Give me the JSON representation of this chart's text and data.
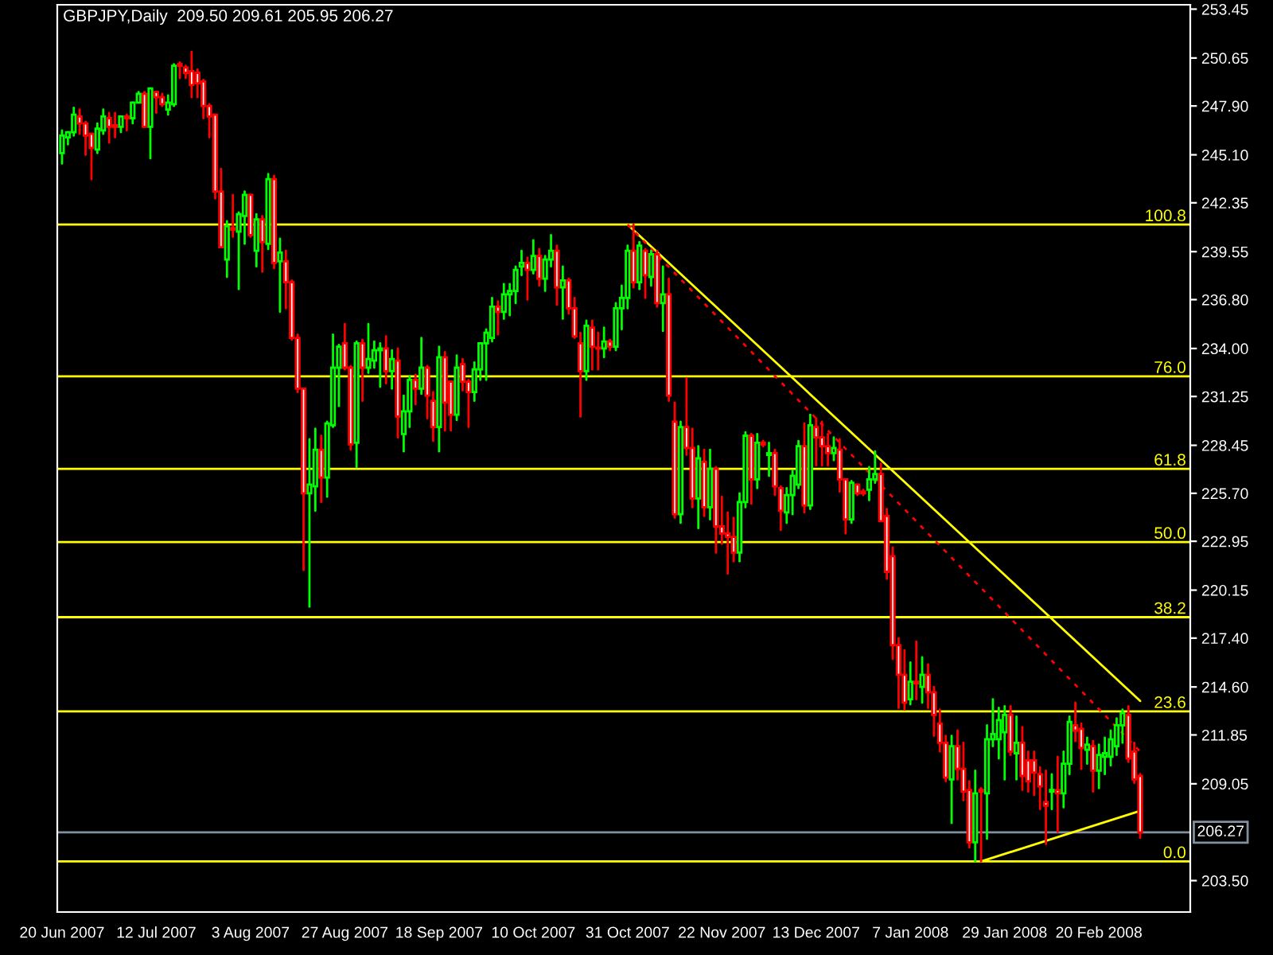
{
  "chart_data": {
    "type": "candlestick",
    "title": "GBPJPY,Daily  209.50 209.61 205.95 206.27",
    "categories": [
      "20 Jun 2007",
      null,
      null,
      null,
      null,
      null,
      null,
      null,
      null,
      null,
      null,
      null,
      null,
      null,
      null,
      null,
      "12 Jul 2007",
      null,
      null,
      null,
      null,
      null,
      null,
      null,
      null,
      null,
      null,
      null,
      null,
      null,
      null,
      null,
      "3 Aug 2007",
      null,
      null,
      null,
      null,
      null,
      null,
      null,
      null,
      null,
      null,
      null,
      null,
      null,
      null,
      null,
      "27 Aug 2007",
      null,
      null,
      null,
      null,
      null,
      null,
      null,
      null,
      null,
      null,
      null,
      null,
      null,
      null,
      null,
      "18 Sep 2007",
      null,
      null,
      null,
      null,
      null,
      null,
      null,
      null,
      null,
      null,
      null,
      null,
      null,
      null,
      null,
      "10 Oct 2007",
      null,
      null,
      null,
      null,
      null,
      null,
      null,
      null,
      null,
      null,
      null,
      null,
      null,
      null,
      null,
      "31 Oct 2007",
      null,
      null,
      null,
      null,
      null,
      null,
      null,
      null,
      null,
      null,
      null,
      null,
      null,
      null,
      null,
      "22 Nov 2007",
      null,
      null,
      null,
      null,
      null,
      null,
      null,
      null,
      null,
      null,
      null,
      null,
      null,
      null,
      null,
      "13 Dec 2007",
      null,
      null,
      null,
      null,
      null,
      null,
      null,
      null,
      null,
      null,
      null,
      null,
      null,
      null,
      null,
      "7 Jan 2008",
      null,
      null,
      null,
      null,
      null,
      null,
      null,
      null,
      null,
      null,
      null,
      null,
      null,
      null,
      null,
      "29 Jan 2008",
      null,
      null,
      null,
      null,
      null,
      null,
      null,
      null,
      null,
      null,
      null,
      null,
      null,
      null,
      null,
      "20 Feb 2008",
      null,
      null,
      null,
      null,
      null,
      null,
      null
    ],
    "ohlc": [
      [
        245.2,
        246.5,
        244.6,
        246.2
      ],
      [
        246.1,
        246.4,
        245.7,
        246.4
      ],
      [
        246.4,
        247.8,
        246.2,
        247.4
      ],
      [
        247.3,
        247.7,
        246.3,
        246.9
      ],
      [
        246.9,
        247.0,
        245.1,
        246.2
      ],
      [
        246.3,
        246.3,
        243.7,
        245.5
      ],
      [
        245.4,
        246.9,
        245.2,
        246.6
      ],
      [
        246.5,
        247.7,
        246.3,
        247.3
      ],
      [
        247.2,
        247.5,
        245.8,
        246.7
      ],
      [
        246.8,
        247.5,
        246.1,
        246.7
      ],
      [
        246.7,
        247.3,
        246.4,
        247.3
      ],
      [
        247.3,
        247.4,
        246.5,
        247.2
      ],
      [
        247.2,
        248.1,
        246.9,
        248.1
      ],
      [
        248.1,
        248.7,
        248.1,
        248.6
      ],
      [
        248.6,
        248.7,
        246.7,
        246.7
      ],
      [
        246.7,
        248.9,
        244.9,
        248.9
      ],
      [
        248.7,
        248.7,
        247.5,
        248.4
      ],
      [
        248.4,
        248.6,
        247.9,
        248.0
      ],
      [
        247.7,
        248.5,
        247.4,
        248.1
      ],
      [
        248.0,
        250.3,
        247.9,
        250.2
      ],
      [
        250.3,
        250.4,
        249.5,
        250.2
      ],
      [
        250.1,
        250.2,
        249.5,
        249.8
      ],
      [
        249.9,
        251.0,
        248.4,
        249.1
      ],
      [
        249.8,
        250.0,
        248.4,
        249.2
      ],
      [
        249.3,
        249.4,
        247.2,
        247.9
      ],
      [
        247.9,
        248.0,
        246.1,
        247.3
      ],
      [
        247.4,
        247.4,
        242.6,
        243.0
      ],
      [
        243.0,
        244.3,
        239.8,
        239.8
      ],
      [
        239.1,
        241.3,
        238.1,
        241.0
      ],
      [
        240.9,
        242.8,
        240.4,
        240.8
      ],
      [
        240.7,
        241.8,
        237.4,
        241.7
      ],
      [
        241.6,
        243.0,
        240.0,
        242.8
      ],
      [
        242.8,
        242.8,
        240.4,
        240.5
      ],
      [
        239.6,
        241.7,
        238.7,
        241.4
      ],
      [
        241.4,
        241.6,
        238.4,
        240.1
      ],
      [
        240.0,
        244.0,
        239.7,
        243.7
      ],
      [
        243.7,
        243.9,
        238.6,
        238.9
      ],
      [
        239.0,
        240.3,
        236.1,
        239.5
      ],
      [
        239.0,
        239.6,
        236.3,
        237.8
      ],
      [
        237.8,
        237.9,
        234.5,
        234.6
      ],
      [
        234.6,
        234.8,
        231.5,
        231.7
      ],
      [
        231.7,
        231.7,
        221.3,
        225.7
      ],
      [
        225.7,
        228.8,
        219.2,
        226.2
      ],
      [
        226.1,
        229.4,
        224.7,
        228.2
      ],
      [
        228.2,
        229.0,
        225.2,
        226.6
      ],
      [
        226.6,
        229.8,
        225.5,
        229.7
      ],
      [
        229.6,
        234.8,
        229.5,
        232.9
      ],
      [
        232.9,
        234.2,
        230.7,
        234.1
      ],
      [
        234.3,
        235.4,
        232.8,
        232.9
      ],
      [
        232.9,
        233.0,
        228.2,
        228.5
      ],
      [
        228.6,
        234.4,
        227.2,
        234.3
      ],
      [
        234.3,
        234.5,
        231.0,
        232.9
      ],
      [
        232.9,
        235.4,
        232.6,
        233.4
      ],
      [
        233.3,
        234.4,
        232.9,
        233.9
      ],
      [
        233.9,
        234.3,
        231.8,
        234.0
      ],
      [
        234.0,
        234.7,
        232.0,
        232.7
      ],
      [
        232.7,
        233.9,
        231.7,
        233.4
      ],
      [
        233.3,
        234.0,
        228.9,
        230.1
      ],
      [
        229.1,
        231.3,
        228.1,
        230.4
      ],
      [
        230.4,
        232.4,
        229.5,
        232.2
      ],
      [
        232.2,
        232.5,
        230.8,
        231.7
      ],
      [
        231.7,
        234.6,
        231.4,
        232.9
      ],
      [
        232.9,
        233.0,
        230.0,
        231.3
      ],
      [
        231.0,
        231.5,
        228.7,
        229.5
      ],
      [
        229.5,
        234.1,
        228.1,
        233.5
      ],
      [
        233.5,
        233.8,
        229.3,
        230.9
      ],
      [
        232.1,
        232.1,
        229.3,
        230.2
      ],
      [
        230.2,
        233.6,
        229.9,
        232.9
      ],
      [
        233.1,
        233.4,
        231.6,
        232.1
      ],
      [
        232.1,
        232.2,
        229.5,
        231.5
      ],
      [
        231.5,
        233.2,
        231.0,
        232.8
      ],
      [
        232.8,
        234.3,
        232.2,
        234.3
      ],
      [
        234.3,
        235.1,
        232.2,
        234.9
      ],
      [
        234.6,
        236.9,
        234.4,
        236.4
      ],
      [
        236.4,
        236.7,
        234.8,
        236.1
      ],
      [
        236.1,
        237.7,
        235.7,
        237.1
      ],
      [
        237.1,
        237.7,
        235.9,
        237.3
      ],
      [
        237.3,
        238.7,
        236.6,
        238.5
      ],
      [
        238.7,
        239.6,
        238.2,
        238.9
      ],
      [
        238.9,
        239.2,
        236.8,
        238.5
      ],
      [
        238.5,
        240.2,
        238.3,
        239.3
      ],
      [
        239.3,
        239.7,
        237.6,
        238.0
      ],
      [
        238.0,
        239.3,
        237.3,
        239.1
      ],
      [
        239.1,
        240.5,
        238.7,
        239.6
      ],
      [
        239.6,
        239.9,
        236.5,
        237.5
      ],
      [
        237.5,
        238.7,
        235.7,
        237.9
      ],
      [
        237.9,
        238.0,
        236.0,
        236.3
      ],
      [
        236.3,
        236.9,
        234.6,
        234.7
      ],
      [
        234.3,
        234.9,
        230.1,
        232.7
      ],
      [
        232.7,
        235.6,
        232.2,
        235.3
      ],
      [
        235.2,
        235.6,
        232.8,
        234.1
      ],
      [
        234.05,
        234.9,
        232.8,
        234.0
      ],
      [
        234.0,
        235.2,
        233.5,
        234.4
      ],
      [
        234.4,
        234.5,
        233.9,
        234.1
      ],
      [
        234.1,
        236.6,
        233.9,
        236.3
      ],
      [
        236.3,
        237.6,
        235.1,
        236.9
      ],
      [
        236.9,
        239.9,
        236.3,
        239.6
      ],
      [
        239.6,
        241.1,
        237.5,
        237.8
      ],
      [
        237.8,
        240.1,
        237.4,
        239.9
      ],
      [
        239.6,
        239.7,
        236.9,
        238.2
      ],
      [
        238.1,
        239.6,
        237.6,
        239.4
      ],
      [
        239.4,
        239.6,
        236.4,
        236.6
      ],
      [
        236.6,
        238.7,
        235.0,
        237.1
      ],
      [
        237.1,
        238.0,
        231.0,
        231.3
      ],
      [
        229.8,
        230.9,
        224.3,
        224.5
      ],
      [
        224.5,
        229.8,
        224.0,
        229.5
      ],
      [
        229.5,
        232.3,
        227.9,
        228.3
      ],
      [
        228.3,
        229.4,
        224.9,
        225.4
      ],
      [
        225.4,
        228.4,
        223.7,
        227.7
      ],
      [
        227.5,
        228.2,
        224.4,
        224.9
      ],
      [
        224.9,
        228.2,
        224.2,
        227.1
      ],
      [
        227.1,
        227.2,
        222.3,
        223.8
      ],
      [
        223.8,
        225.5,
        222.8,
        223.4
      ],
      [
        223.4,
        224.6,
        221.1,
        223.2
      ],
      [
        223.2,
        224.3,
        221.8,
        222.3
      ],
      [
        222.3,
        225.7,
        221.8,
        225.2
      ],
      [
        225.2,
        229.2,
        224.9,
        229.0
      ],
      [
        229.0,
        229.1,
        225.1,
        226.5
      ],
      [
        226.5,
        229.1,
        226.0,
        228.6
      ],
      [
        228.6,
        228.7,
        228.4,
        228.5
      ],
      [
        227.9,
        228.6,
        226.7,
        228.0
      ],
      [
        228.0,
        228.2,
        225.6,
        226.1
      ],
      [
        226.0,
        226.1,
        223.6,
        224.7
      ],
      [
        224.6,
        226.0,
        224.0,
        225.6
      ],
      [
        225.6,
        227.0,
        224.5,
        226.7
      ],
      [
        226.2,
        228.7,
        226.0,
        228.4
      ],
      [
        228.4,
        229.7,
        224.6,
        225.0
      ],
      [
        225.0,
        230.2,
        224.8,
        229.6
      ],
      [
        229.5,
        230.0,
        227.3,
        228.9
      ],
      [
        228.9,
        229.8,
        227.3,
        228.4
      ],
      [
        228.4,
        229.1,
        227.3,
        228.0
      ],
      [
        228.0,
        228.9,
        227.6,
        228.3
      ],
      [
        228.2,
        228.8,
        225.8,
        226.5
      ],
      [
        226.5,
        226.5,
        223.4,
        224.2
      ],
      [
        224.2,
        226.4,
        224.0,
        226.3
      ],
      [
        226.2,
        226.2,
        225.6,
        225.7
      ],
      [
        225.8,
        225.9,
        225.6,
        225.7
      ],
      [
        225.9,
        227.2,
        225.3,
        226.5
      ],
      [
        226.5,
        228.1,
        226.3,
        226.8
      ],
      [
        226.8,
        227.4,
        224.1,
        224.1
      ],
      [
        224.4,
        224.8,
        220.8,
        221.2
      ],
      [
        222.1,
        222.6,
        216.2,
        217.0
      ],
      [
        217.0,
        217.4,
        213.4,
        215.3
      ],
      [
        215.3,
        216.7,
        213.3,
        213.7
      ],
      [
        213.9,
        216.0,
        213.6,
        214.9
      ],
      [
        214.9,
        217.2,
        213.9,
        214.8
      ],
      [
        214.6,
        216.3,
        213.7,
        215.3
      ],
      [
        215.3,
        215.9,
        213.4,
        214.3
      ],
      [
        214.3,
        214.6,
        211.8,
        213.0
      ],
      [
        212.5,
        213.3,
        210.9,
        211.4
      ],
      [
        211.4,
        211.8,
        209.2,
        209.4
      ],
      [
        209.3,
        211.8,
        206.8,
        211.2
      ],
      [
        211.2,
        212.1,
        209.3,
        209.9
      ],
      [
        209.9,
        211.4,
        208.1,
        208.6
      ],
      [
        208.7,
        209.2,
        205.4,
        205.7
      ],
      [
        205.7,
        209.8,
        204.6,
        208.5
      ],
      [
        208.7,
        208.8,
        204.6,
        208.6
      ],
      [
        208.5,
        212.4,
        205.9,
        211.6
      ],
      [
        211.6,
        213.9,
        211.2,
        211.9
      ],
      [
        211.6,
        213.4,
        210.5,
        212.7
      ],
      [
        212.0,
        213.5,
        209.3,
        213.0
      ],
      [
        213.0,
        213.5,
        210.7,
        210.9
      ],
      [
        210.8,
        212.9,
        209.3,
        211.4
      ],
      [
        211.4,
        212.3,
        208.7,
        209.5
      ],
      [
        210.4,
        210.9,
        208.6,
        209.2
      ],
      [
        210.4,
        210.9,
        208.4,
        209.7
      ],
      [
        209.6,
        210.0,
        207.6,
        208.9
      ],
      [
        208.0,
        209.8,
        205.6,
        207.8
      ],
      [
        208.6,
        209.6,
        207.6,
        208.7
      ],
      [
        208.7,
        210.6,
        206.3,
        208.5
      ],
      [
        208.5,
        210.9,
        207.7,
        210.2
      ],
      [
        210.2,
        212.9,
        209.6,
        212.6
      ],
      [
        212.4,
        213.7,
        211.5,
        212.1
      ],
      [
        212.2,
        212.5,
        209.9,
        211.1
      ],
      [
        211.0,
        211.7,
        210.2,
        211.3
      ],
      [
        211.2,
        211.5,
        208.6,
        209.8
      ],
      [
        209.8,
        211.3,
        208.8,
        210.7
      ],
      [
        210.6,
        211.7,
        209.6,
        210.8
      ],
      [
        210.6,
        212.1,
        210.1,
        211.6
      ],
      [
        211.2,
        212.8,
        210.7,
        212.4
      ],
      [
        212.4,
        213.3,
        211.4,
        213.1
      ],
      [
        213.0,
        213.5,
        210.3,
        210.5
      ],
      [
        210.9,
        211.4,
        209.1,
        209.3
      ],
      [
        209.5,
        209.61,
        205.95,
        206.27
      ]
    ],
    "series": [
      {
        "type": "line",
        "color": "#ffff00",
        "line_style": "solid",
        "values": [
          null,
          null,
          null,
          null,
          null,
          null,
          null,
          null,
          null,
          null,
          null,
          null,
          null,
          null,
          null,
          null,
          null,
          null,
          null,
          null,
          null,
          null,
          null,
          null,
          null,
          null,
          null,
          null,
          null,
          null,
          null,
          null,
          null,
          null,
          null,
          null,
          null,
          null,
          null,
          null,
          null,
          null,
          null,
          null,
          null,
          null,
          null,
          null,
          null,
          null,
          null,
          null,
          null,
          null,
          null,
          null,
          null,
          null,
          null,
          null,
          null,
          null,
          null,
          null,
          null,
          null,
          null,
          null,
          null,
          null,
          null,
          null,
          null,
          null,
          null,
          null,
          null,
          null,
          null,
          null,
          null,
          null,
          null,
          null,
          null,
          null,
          null,
          null,
          null,
          null,
          null,
          null,
          null,
          null,
          null,
          null,
          241.1,
          null,
          null,
          null,
          null,
          null,
          null,
          null,
          null,
          null,
          null,
          null,
          null,
          null,
          null,
          null,
          null,
          null,
          null,
          null,
          null,
          null,
          null,
          null,
          null,
          null,
          null,
          null,
          null,
          null,
          null,
          null,
          null,
          null,
          null,
          null,
          null,
          null,
          null,
          null,
          null,
          null,
          null,
          null,
          null,
          null,
          null,
          null,
          null,
          null,
          null,
          null,
          null,
          null,
          null,
          null,
          null,
          null,
          null,
          null,
          null,
          null,
          null,
          null,
          null,
          null,
          null,
          null,
          null,
          null,
          null,
          null,
          null,
          null,
          null,
          null,
          null,
          null,
          null,
          null,
          null,
          null,
          null,
          null,
          null,
          null,
          null,
          213.8
        ]
      },
      {
        "type": "line",
        "color": "#ff0000",
        "line_style": "dashed",
        "values": [
          null,
          null,
          null,
          null,
          null,
          null,
          null,
          null,
          null,
          null,
          null,
          null,
          null,
          null,
          null,
          null,
          null,
          null,
          null,
          null,
          null,
          null,
          null,
          null,
          null,
          null,
          null,
          null,
          null,
          null,
          null,
          null,
          null,
          null,
          null,
          null,
          null,
          null,
          null,
          null,
          null,
          null,
          null,
          null,
          null,
          null,
          null,
          null,
          null,
          null,
          null,
          null,
          null,
          null,
          null,
          null,
          null,
          null,
          null,
          null,
          null,
          null,
          null,
          null,
          null,
          null,
          null,
          null,
          null,
          null,
          null,
          null,
          null,
          null,
          null,
          null,
          null,
          null,
          null,
          null,
          null,
          null,
          null,
          null,
          null,
          null,
          null,
          null,
          null,
          null,
          null,
          null,
          null,
          null,
          null,
          null,
          241.1,
          null,
          null,
          null,
          null,
          null,
          null,
          null,
          null,
          null,
          null,
          null,
          null,
          null,
          null,
          null,
          null,
          null,
          null,
          null,
          null,
          null,
          null,
          null,
          null,
          null,
          null,
          null,
          null,
          null,
          null,
          null,
          null,
          null,
          null,
          null,
          null,
          null,
          null,
          null,
          null,
          null,
          null,
          null,
          null,
          null,
          null,
          null,
          null,
          null,
          null,
          null,
          null,
          null,
          null,
          null,
          null,
          null,
          null,
          null,
          null,
          null,
          null,
          null,
          null,
          null,
          null,
          null,
          null,
          null,
          null,
          null,
          null,
          null,
          null,
          null,
          null,
          null,
          null,
          null,
          null,
          null,
          null,
          null,
          null,
          null,
          null,
          210.9
        ]
      },
      {
        "type": "line",
        "color": "#ffff00",
        "line_style": "solid",
        "values": [
          null,
          null,
          null,
          null,
          null,
          null,
          null,
          null,
          null,
          null,
          null,
          null,
          null,
          null,
          null,
          null,
          null,
          null,
          null,
          null,
          null,
          null,
          null,
          null,
          null,
          null,
          null,
          null,
          null,
          null,
          null,
          null,
          null,
          null,
          null,
          null,
          null,
          null,
          null,
          null,
          null,
          null,
          null,
          null,
          null,
          null,
          null,
          null,
          null,
          null,
          null,
          null,
          null,
          null,
          null,
          null,
          null,
          null,
          null,
          null,
          null,
          null,
          null,
          null,
          null,
          null,
          null,
          null,
          null,
          null,
          null,
          null,
          null,
          null,
          null,
          null,
          null,
          null,
          null,
          null,
          null,
          null,
          null,
          null,
          null,
          null,
          null,
          null,
          null,
          null,
          null,
          null,
          null,
          null,
          null,
          null,
          null,
          null,
          null,
          null,
          null,
          null,
          null,
          null,
          null,
          null,
          null,
          null,
          null,
          null,
          null,
          null,
          null,
          null,
          null,
          null,
          null,
          null,
          null,
          null,
          null,
          null,
          null,
          null,
          null,
          null,
          null,
          null,
          null,
          null,
          null,
          null,
          null,
          null,
          null,
          null,
          null,
          null,
          null,
          null,
          null,
          null,
          null,
          null,
          null,
          null,
          null,
          null,
          null,
          null,
          null,
          null,
          null,
          null,
          null,
          null,
          204.6,
          null,
          null,
          null,
          null,
          null,
          null,
          null,
          null,
          null,
          null,
          null,
          null,
          null,
          null,
          null,
          null,
          null,
          null,
          null,
          null,
          null,
          null,
          null,
          null,
          null,
          null,
          207.5
        ]
      }
    ],
    "annotations": [
      {
        "text": "100.8",
        "y": 241.1
      },
      {
        "text": "76.0",
        "y": 232.4
      },
      {
        "text": "61.8",
        "y": 227.1
      },
      {
        "text": "50.0",
        "y": 222.9
      },
      {
        "text": "38.2",
        "y": 218.6
      },
      {
        "text": "23.6",
        "y": 213.2
      },
      {
        "text": "0.0",
        "y": 204.6
      }
    ],
    "ref_lines": [
      {
        "axis": "y",
        "value": 241.1,
        "color": "#ffff00"
      },
      {
        "axis": "y",
        "value": 232.4,
        "color": "#ffff00"
      },
      {
        "axis": "y",
        "value": 227.1,
        "color": "#ffff00"
      },
      {
        "axis": "y",
        "value": 222.9,
        "color": "#ffff00"
      },
      {
        "axis": "y",
        "value": 218.6,
        "color": "#ffff00"
      },
      {
        "axis": "y",
        "value": 213.2,
        "color": "#ffff00"
      },
      {
        "axis": "y",
        "value": 204.6,
        "color": "#ffff00"
      },
      {
        "axis": "y",
        "value": 206.27,
        "label": "206.27",
        "color": "#8090a0"
      }
    ],
    "ylim": [
      201.7,
      253.7
    ],
    "yticks": [
      {
        "value": 203.5,
        "label": "203.50"
      },
      {
        "value": 209.05,
        "label": "209.05"
      },
      {
        "value": 211.85,
        "label": "211.85"
      },
      {
        "value": 214.6,
        "label": "214.60"
      },
      {
        "value": 217.4,
        "label": "217.40"
      },
      {
        "value": 220.15,
        "label": "220.15"
      },
      {
        "value": 222.95,
        "label": "222.95"
      },
      {
        "value": 225.7,
        "label": "225.70"
      },
      {
        "value": 228.45,
        "label": "228.45"
      },
      {
        "value": 231.25,
        "label": "231.25"
      },
      {
        "value": 234.0,
        "label": "234.00"
      },
      {
        "value": 236.8,
        "label": "236.80"
      },
      {
        "value": 239.55,
        "label": "239.55"
      },
      {
        "value": 242.35,
        "label": "242.35"
      },
      {
        "value": 245.1,
        "label": "245.10"
      },
      {
        "value": 247.9,
        "label": "247.90"
      },
      {
        "value": 250.65,
        "label": "250.65"
      },
      {
        "value": 253.45,
        "label": "253.45"
      }
    ],
    "legend": false
  }
}
